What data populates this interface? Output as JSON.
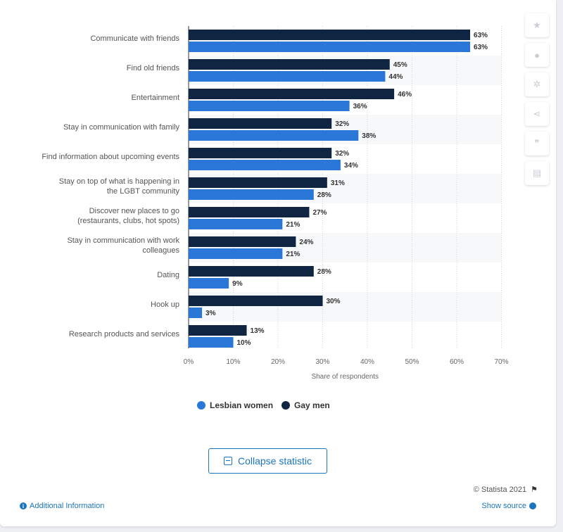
{
  "chart_data": {
    "type": "bar",
    "orientation": "horizontal",
    "categories": [
      "Communicate with friends",
      "Find old friends",
      "Entertainment",
      "Stay in communication with family",
      "Find information about upcoming events",
      "Stay on top of what is happening in the LGBT community",
      "Discover new places to go (restaurants, clubs, hot spots)",
      "Stay in communication with work colleagues",
      "Dating",
      "Hook up",
      "Research products and services"
    ],
    "series": [
      {
        "name": "Gay men",
        "color": "#0f2542",
        "values": [
          63,
          45,
          46,
          32,
          32,
          31,
          27,
          24,
          28,
          30,
          13
        ]
      },
      {
        "name": "Lesbian women",
        "color": "#2a77d8",
        "values": [
          63,
          44,
          36,
          38,
          34,
          28,
          21,
          21,
          9,
          3,
          10
        ]
      }
    ],
    "xlabel": "Share of respondents",
    "xlim": [
      0,
      70
    ],
    "xticks": [
      0,
      10,
      20,
      30,
      40,
      50,
      60,
      70
    ],
    "value_suffix": "%",
    "grid": true,
    "legend_position": "bottom"
  },
  "legend": {
    "items": [
      {
        "label": "Lesbian women",
        "color": "#2a77d8"
      },
      {
        "label": "Gay men",
        "color": "#0f2542"
      }
    ]
  },
  "buttons": {
    "collapse_label": "Collapse statistic"
  },
  "footer": {
    "copyright": "© Statista 2021",
    "additional_info": "Additional Information",
    "show_source": "Show source"
  },
  "toolbar_icons": [
    "star-icon",
    "bell-icon",
    "gear-icon",
    "share-icon",
    "quote-icon",
    "print-icon"
  ]
}
